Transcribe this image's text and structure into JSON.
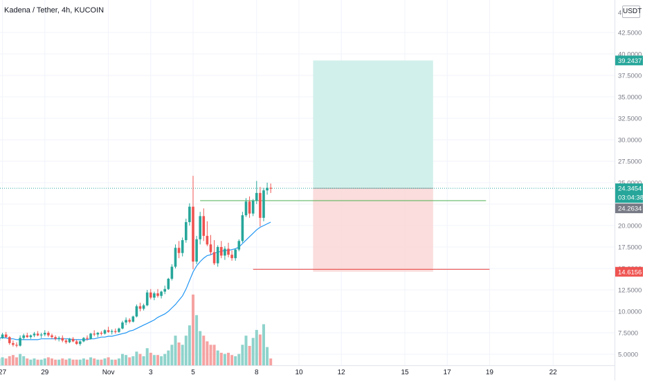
{
  "header": {
    "title": "Kadena / Tether, 4h, KUCOIN",
    "currency": "USDT"
  },
  "colors": {
    "up": "#26a69a",
    "down": "#ef5350",
    "up_volume": "#8fd3cc",
    "down_volume": "#f5a3a2",
    "ma": "#2196f3",
    "target_zone": "#cdeee9",
    "stop_zone": "#fbd9d9",
    "resistance_line": "#4caf50",
    "support_line": "#e53935",
    "current_price": "#26a69a",
    "last_close_tag": "#787b86"
  },
  "price_axis": {
    "ticks": [
      "4",
      "42.5000",
      "40.0000",
      "37.5000",
      "35.0000",
      "32.5000",
      "30.0000",
      "27.5000",
      "25.0000",
      "20.0000",
      "17.5000",
      "15.0000",
      "12.5000",
      "10.0000",
      "7.5000",
      "5.0000"
    ]
  },
  "time_axis": {
    "ticks": [
      "27",
      "29",
      "Nov",
      "3",
      "5",
      "8",
      "10",
      "12",
      "15",
      "17",
      "19",
      "22"
    ]
  },
  "price_tags": {
    "target": "39.2437",
    "current": "24.3454",
    "countdown": "03:04:38",
    "last_close": "24.2634",
    "stop": "14.6156"
  },
  "chart_data": {
    "type": "candlestick",
    "symbol": "Kadena / Tether",
    "interval": "4h",
    "exchange": "KUCOIN",
    "ylim": [
      4.2,
      44
    ],
    "xlim": [
      "Oct 26",
      "Nov 23"
    ],
    "grid": true,
    "candles": [
      [
        6.9,
        7.5,
        6.6,
        7.3,
        0.8
      ],
      [
        7.3,
        7.6,
        6.9,
        7.0,
        0.7
      ],
      [
        7.0,
        7.3,
        6.5,
        6.6,
        0.6
      ],
      [
        6.6,
        7.0,
        6.4,
        6.9,
        0.6
      ],
      [
        6.9,
        7.5,
        6.8,
        7.3,
        0.7
      ],
      [
        7.3,
        7.6,
        6.9,
        7.0,
        0.6
      ],
      [
        7.0,
        7.1,
        6.1,
        6.3,
        0.8
      ],
      [
        6.3,
        6.6,
        5.9,
        6.1,
        0.9
      ],
      [
        6.1,
        6.4,
        5.8,
        6.0,
        0.7
      ],
      [
        6.0,
        7.2,
        5.9,
        6.9,
        1.0
      ],
      [
        6.9,
        7.4,
        6.7,
        7.2,
        0.8
      ],
      [
        7.2,
        7.5,
        6.9,
        7.0,
        0.6
      ],
      [
        7.0,
        7.3,
        6.8,
        7.2,
        0.5
      ],
      [
        7.2,
        7.6,
        7.0,
        7.4,
        0.6
      ],
      [
        7.4,
        7.7,
        7.1,
        7.2,
        0.5
      ],
      [
        7.2,
        7.5,
        6.9,
        7.3,
        0.5
      ],
      [
        7.3,
        7.8,
        7.1,
        7.5,
        0.6
      ],
      [
        7.5,
        7.7,
        7.0,
        7.2,
        0.7
      ],
      [
        7.2,
        7.4,
        6.8,
        7.0,
        0.6
      ],
      [
        7.0,
        7.2,
        6.6,
        6.8,
        0.5
      ],
      [
        6.8,
        7.1,
        6.5,
        6.9,
        0.5
      ],
      [
        6.9,
        7.2,
        6.4,
        6.6,
        0.6
      ],
      [
        6.6,
        6.8,
        6.2,
        6.4,
        0.5
      ],
      [
        6.4,
        6.9,
        6.3,
        6.8,
        0.6
      ],
      [
        6.8,
        7.0,
        6.4,
        6.5,
        0.5
      ],
      [
        6.5,
        6.7,
        6.1,
        6.2,
        0.5
      ],
      [
        6.2,
        6.6,
        6.0,
        6.5,
        0.5
      ],
      [
        6.5,
        7.0,
        6.4,
        6.9,
        0.6
      ],
      [
        6.9,
        7.2,
        6.6,
        6.8,
        0.5
      ],
      [
        6.8,
        7.5,
        6.7,
        7.4,
        0.7
      ],
      [
        7.4,
        7.8,
        7.1,
        7.3,
        0.6
      ],
      [
        7.3,
        7.6,
        7.0,
        7.5,
        0.5
      ],
      [
        7.5,
        7.7,
        7.2,
        7.4,
        0.5
      ],
      [
        7.4,
        7.9,
        7.3,
        7.8,
        0.6
      ],
      [
        7.8,
        8.2,
        7.5,
        7.6,
        0.7
      ],
      [
        7.6,
        7.9,
        7.3,
        7.7,
        0.5
      ],
      [
        7.7,
        8.0,
        7.4,
        7.6,
        0.5
      ],
      [
        7.6,
        8.1,
        7.5,
        8.0,
        0.6
      ],
      [
        8.0,
        8.9,
        7.9,
        8.7,
        1.0
      ],
      [
        8.7,
        9.3,
        8.4,
        9.0,
        0.9
      ],
      [
        9.0,
        9.2,
        8.6,
        8.8,
        0.7
      ],
      [
        8.8,
        9.5,
        8.7,
        9.4,
        0.8
      ],
      [
        9.4,
        10.8,
        9.3,
        10.6,
        1.2
      ],
      [
        10.6,
        11.0,
        10.0,
        10.3,
        1.0
      ],
      [
        10.3,
        10.9,
        10.1,
        10.7,
        0.8
      ],
      [
        10.7,
        12.5,
        10.6,
        12.2,
        1.5
      ],
      [
        12.2,
        12.6,
        11.4,
        11.6,
        1.1
      ],
      [
        11.6,
        12.3,
        11.3,
        12.1,
        0.9
      ],
      [
        12.1,
        12.6,
        11.6,
        11.8,
        0.9
      ],
      [
        11.8,
        12.4,
        11.5,
        12.3,
        0.8
      ],
      [
        12.3,
        13.0,
        12.0,
        12.6,
        1.0
      ],
      [
        12.6,
        13.9,
        12.5,
        13.8,
        1.3
      ],
      [
        13.8,
        15.5,
        13.6,
        15.2,
        1.8
      ],
      [
        15.2,
        17.8,
        15.0,
        17.4,
        2.6
      ],
      [
        17.4,
        18.2,
        16.2,
        16.8,
        2.0
      ],
      [
        16.8,
        18.6,
        16.4,
        18.3,
        1.8
      ],
      [
        18.3,
        20.8,
        18.0,
        20.4,
        2.6
      ],
      [
        20.4,
        22.6,
        20.0,
        22.2,
        3.5
      ],
      [
        22.2,
        25.8,
        14.9,
        15.8,
        6.2
      ],
      [
        15.8,
        18.8,
        15.5,
        18.4,
        4.4
      ],
      [
        18.4,
        21.6,
        17.8,
        21.1,
        3.0
      ],
      [
        21.1,
        22.0,
        18.2,
        18.8,
        2.6
      ],
      [
        18.8,
        20.5,
        17.6,
        17.8,
        2.1
      ],
      [
        17.8,
        18.9,
        16.6,
        16.9,
        1.8
      ],
      [
        16.9,
        18.3,
        15.4,
        15.6,
        1.8
      ],
      [
        15.6,
        17.7,
        15.2,
        17.5,
        1.3
      ],
      [
        17.5,
        18.2,
        16.2,
        16.5,
        1.1
      ],
      [
        16.5,
        17.6,
        16.0,
        17.3,
        1.0
      ],
      [
        17.3,
        18.0,
        16.3,
        16.6,
        1.1
      ],
      [
        16.6,
        17.1,
        15.9,
        16.2,
        0.9
      ],
      [
        16.2,
        17.3,
        15.9,
        17.2,
        0.8
      ],
      [
        17.2,
        18.4,
        17.0,
        18.2,
        1.0
      ],
      [
        18.2,
        21.6,
        18.0,
        21.2,
        1.8
      ],
      [
        21.2,
        23.2,
        21.0,
        22.8,
        2.6
      ],
      [
        22.8,
        23.4,
        20.9,
        21.4,
        1.7
      ],
      [
        21.4,
        23.1,
        21.1,
        22.9,
        2.4
      ],
      [
        22.9,
        25.2,
        22.5,
        23.8,
        3.1
      ],
      [
        23.8,
        24.5,
        19.9,
        20.9,
        2.7
      ],
      [
        20.9,
        24.4,
        20.5,
        24.1,
        3.6
      ],
      [
        24.1,
        25.0,
        23.6,
        24.4,
        1.6
      ],
      [
        24.4,
        24.9,
        23.8,
        24.3,
        0.6
      ]
    ],
    "moving_average": [
      6.9,
      6.9,
      6.9,
      6.9,
      6.9,
      6.9,
      6.8,
      6.8,
      6.7,
      6.7,
      6.7,
      6.7,
      6.7,
      6.7,
      6.7,
      6.8,
      6.8,
      6.8,
      6.8,
      6.8,
      6.8,
      6.8,
      6.8,
      6.8,
      6.7,
      6.7,
      6.7,
      6.7,
      6.7,
      6.8,
      6.8,
      6.9,
      7.0,
      7.0,
      7.1,
      7.1,
      7.2,
      7.3,
      7.4,
      7.5,
      7.7,
      7.8,
      8.0,
      8.2,
      8.4,
      8.6,
      8.8,
      9.0,
      9.3,
      9.5,
      9.7,
      10.0,
      10.4,
      10.8,
      11.3,
      11.8,
      12.6,
      13.6,
      14.6,
      15.3,
      15.8,
      16.2,
      16.5,
      16.6,
      16.8,
      16.9,
      17.0,
      17.1,
      17.1,
      17.2,
      17.3,
      17.5,
      17.9,
      18.3,
      18.7,
      19.1,
      19.5,
      19.8,
      20.0,
      20.2,
      20.4
    ],
    "horizontal_lines": [
      {
        "price": 22.9,
        "from": "Nov 5 08:00",
        "to": "Nov 18 20:00"
      },
      {
        "price": 14.9,
        "from": "Nov 7 20:00",
        "to": "Nov 19 00:00"
      }
    ],
    "position": {
      "type": "long",
      "entry": 24.3454,
      "target": 39.2437,
      "stop": 14.6156,
      "from": "Nov 10 16:00",
      "to": "Nov 16 08:00"
    },
    "last_price": 24.3454,
    "last_close": 24.2634
  }
}
